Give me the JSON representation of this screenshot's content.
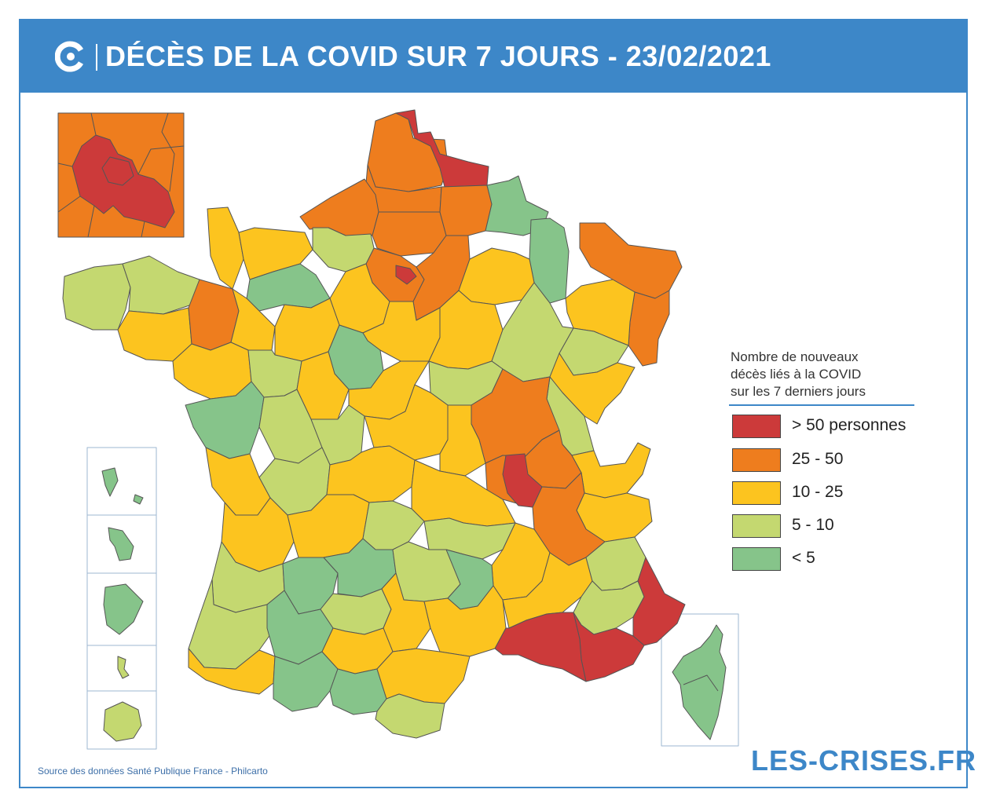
{
  "header": {
    "title": "DÉCÈS DE LA COVID SUR 7 JOURS - 23/02/2021",
    "logo_icon": "les-crises-logo-icon"
  },
  "legend": {
    "title_lines": [
      "Nombre de nouveaux",
      "décès liés à la COVID",
      "sur les 7 derniers jours"
    ],
    "items": [
      {
        "label": "> 50 personnes",
        "color": "#cc3a3a"
      },
      {
        "label": "25 - 50",
        "color": "#ee7d1e"
      },
      {
        "label": "10 - 25",
        "color": "#fcc41f"
      },
      {
        "label": "5 - 10",
        "color": "#c4d870"
      },
      {
        "label": "< 5",
        "color": "#86c48a"
      }
    ]
  },
  "footer": {
    "source": "Source des données Santé Publique France - Philcarto",
    "brand": "LES-CRISES.FR"
  },
  "colors": {
    "brand_blue": "#3d87c8",
    "border": "#555555"
  }
}
